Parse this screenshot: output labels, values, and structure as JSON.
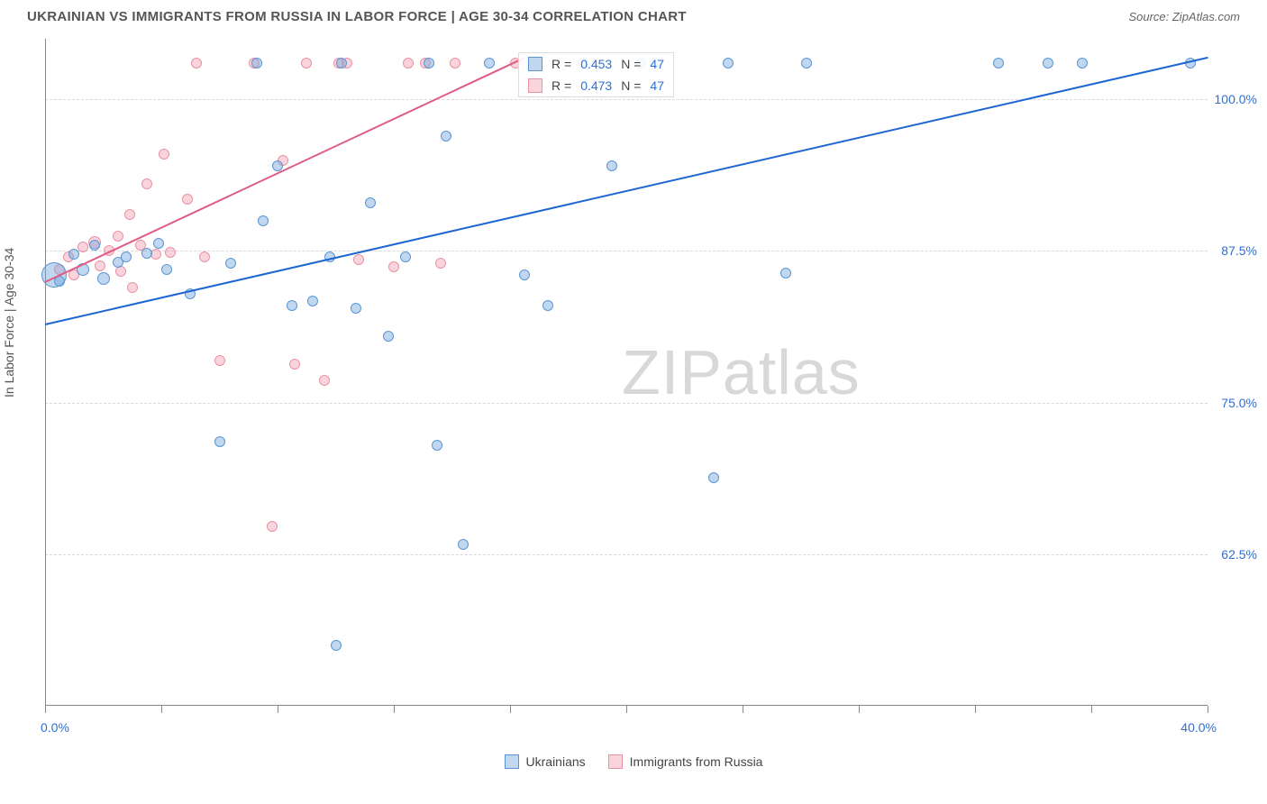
{
  "title": "UKRAINIAN VS IMMIGRANTS FROM RUSSIA IN LABOR FORCE | AGE 30-34 CORRELATION CHART",
  "source_label": "Source: ZipAtlas.com",
  "ylabel": "In Labor Force | Age 30-34",
  "chart": {
    "type": "scatter",
    "background_color": "#ffffff",
    "grid_color": "#d8d8d8",
    "axis_color": "#888888",
    "label_color": "#2f6fd0",
    "xlim": [
      0,
      40
    ],
    "ylim": [
      50,
      105
    ],
    "xtick_positions": [
      0,
      4,
      8,
      12,
      16,
      20,
      24,
      28,
      32,
      36,
      40
    ],
    "x_min_label": "0.0%",
    "x_max_label": "40.0%",
    "ytick_positions": [
      62.5,
      75.0,
      87.5,
      100.0
    ],
    "ytick_labels": [
      "62.5%",
      "75.0%",
      "87.5%",
      "100.0%"
    ],
    "ytick_fontsize": 14,
    "watermark_text_a": "ZIP",
    "watermark_text_b": "atlas",
    "watermark_color": "#d8d8d8",
    "series": {
      "blue": {
        "name": "Ukrainians",
        "fill": "rgba(116,166,220,0.45)",
        "stroke": "#5b96d4",
        "trend_color": "#1e66d0",
        "R": "0.453",
        "N": "47",
        "trend": {
          "x1": 0,
          "y1": 81.5,
          "x2": 40,
          "y2": 103.5
        },
        "points": [
          {
            "x": 0.3,
            "y": 85.5,
            "r": 14
          },
          {
            "x": 0.5,
            "y": 85.0,
            "r": 6
          },
          {
            "x": 1.0,
            "y": 87.2,
            "r": 6
          },
          {
            "x": 1.3,
            "y": 86.0,
            "r": 7
          },
          {
            "x": 1.7,
            "y": 88.0,
            "r": 6
          },
          {
            "x": 2.0,
            "y": 85.2,
            "r": 7
          },
          {
            "x": 2.8,
            "y": 87.0,
            "r": 6
          },
          {
            "x": 2.5,
            "y": 86.6,
            "r": 6
          },
          {
            "x": 3.5,
            "y": 87.3,
            "r": 6
          },
          {
            "x": 3.9,
            "y": 88.1,
            "r": 6
          },
          {
            "x": 4.2,
            "y": 86.0,
            "r": 6
          },
          {
            "x": 5.0,
            "y": 84.0,
            "r": 6
          },
          {
            "x": 6.0,
            "y": 71.8,
            "r": 6
          },
          {
            "x": 6.4,
            "y": 86.5,
            "r": 6
          },
          {
            "x": 7.3,
            "y": 103.0,
            "r": 6
          },
          {
            "x": 7.5,
            "y": 90.0,
            "r": 6
          },
          {
            "x": 8.0,
            "y": 94.5,
            "r": 6
          },
          {
            "x": 8.5,
            "y": 83.0,
            "r": 6
          },
          {
            "x": 9.2,
            "y": 83.4,
            "r": 6
          },
          {
            "x": 9.8,
            "y": 87.0,
            "r": 6
          },
          {
            "x": 10.0,
            "y": 55.0,
            "r": 6
          },
          {
            "x": 10.7,
            "y": 82.8,
            "r": 6
          },
          {
            "x": 10.2,
            "y": 103.0,
            "r": 6
          },
          {
            "x": 11.2,
            "y": 91.5,
            "r": 6
          },
          {
            "x": 11.8,
            "y": 80.5,
            "r": 6
          },
          {
            "x": 12.4,
            "y": 87.0,
            "r": 6
          },
          {
            "x": 13.2,
            "y": 103.0,
            "r": 6
          },
          {
            "x": 13.5,
            "y": 71.5,
            "r": 6
          },
          {
            "x": 13.8,
            "y": 97.0,
            "r": 6
          },
          {
            "x": 14.4,
            "y": 63.3,
            "r": 6
          },
          {
            "x": 15.3,
            "y": 103.0,
            "r": 6
          },
          {
            "x": 16.5,
            "y": 85.5,
            "r": 6
          },
          {
            "x": 17.3,
            "y": 83.0,
            "r": 6
          },
          {
            "x": 18.5,
            "y": 103.0,
            "r": 6
          },
          {
            "x": 19.5,
            "y": 94.5,
            "r": 6
          },
          {
            "x": 20.5,
            "y": 103.0,
            "r": 6
          },
          {
            "x": 21.0,
            "y": 103.0,
            "r": 6
          },
          {
            "x": 23.0,
            "y": 68.8,
            "r": 6
          },
          {
            "x": 23.5,
            "y": 103.0,
            "r": 6
          },
          {
            "x": 25.5,
            "y": 85.7,
            "r": 6
          },
          {
            "x": 26.2,
            "y": 103.0,
            "r": 6
          },
          {
            "x": 32.8,
            "y": 103.0,
            "r": 6
          },
          {
            "x": 34.5,
            "y": 103.0,
            "r": 6
          },
          {
            "x": 35.7,
            "y": 103.0,
            "r": 6
          },
          {
            "x": 39.4,
            "y": 103.0,
            "r": 6
          }
        ]
      },
      "pink": {
        "name": "Immigants from Russia",
        "name_display": "Immigrants from Russia",
        "fill": "rgba(243,160,178,0.45)",
        "stroke": "#e892a4",
        "trend_color": "#e05b85",
        "R": "0.473",
        "N": "47",
        "trend": {
          "x1": 0,
          "y1": 85.0,
          "x2": 16.5,
          "y2": 103.5
        },
        "points": [
          {
            "x": 0.5,
            "y": 86.0,
            "r": 6
          },
          {
            "x": 0.8,
            "y": 87.0,
            "r": 6
          },
          {
            "x": 1.0,
            "y": 85.5,
            "r": 6
          },
          {
            "x": 1.3,
            "y": 87.8,
            "r": 6
          },
          {
            "x": 1.7,
            "y": 88.2,
            "r": 7
          },
          {
            "x": 1.9,
            "y": 86.3,
            "r": 6
          },
          {
            "x": 2.2,
            "y": 87.5,
            "r": 6
          },
          {
            "x": 2.5,
            "y": 88.7,
            "r": 6
          },
          {
            "x": 2.6,
            "y": 85.8,
            "r": 6
          },
          {
            "x": 2.9,
            "y": 90.5,
            "r": 6
          },
          {
            "x": 3.0,
            "y": 84.5,
            "r": 6
          },
          {
            "x": 3.3,
            "y": 88.0,
            "r": 6
          },
          {
            "x": 3.5,
            "y": 93.0,
            "r": 6
          },
          {
            "x": 3.8,
            "y": 87.2,
            "r": 6
          },
          {
            "x": 4.1,
            "y": 95.5,
            "r": 6
          },
          {
            "x": 4.3,
            "y": 87.4,
            "r": 6
          },
          {
            "x": 4.9,
            "y": 91.8,
            "r": 6
          },
          {
            "x": 5.2,
            "y": 103.0,
            "r": 6
          },
          {
            "x": 5.5,
            "y": 87.0,
            "r": 6
          },
          {
            "x": 6.0,
            "y": 78.5,
            "r": 6
          },
          {
            "x": 7.2,
            "y": 103.0,
            "r": 6
          },
          {
            "x": 7.8,
            "y": 64.8,
            "r": 6
          },
          {
            "x": 8.2,
            "y": 95.0,
            "r": 6
          },
          {
            "x": 8.6,
            "y": 78.2,
            "r": 6
          },
          {
            "x": 9.0,
            "y": 103.0,
            "r": 6
          },
          {
            "x": 9.6,
            "y": 76.8,
            "r": 6
          },
          {
            "x": 10.1,
            "y": 103.0,
            "r": 6
          },
          {
            "x": 10.4,
            "y": 103.0,
            "r": 6
          },
          {
            "x": 10.8,
            "y": 86.8,
            "r": 6
          },
          {
            "x": 12.0,
            "y": 86.2,
            "r": 6
          },
          {
            "x": 12.5,
            "y": 103.0,
            "r": 6
          },
          {
            "x": 13.1,
            "y": 103.0,
            "r": 6
          },
          {
            "x": 13.6,
            "y": 86.5,
            "r": 6
          },
          {
            "x": 14.1,
            "y": 103.0,
            "r": 6
          },
          {
            "x": 16.2,
            "y": 103.0,
            "r": 6
          }
        ]
      }
    }
  },
  "legend": {
    "series1": "Ukrainians",
    "series2": "Immigrants from Russia"
  },
  "stats_box": {
    "row1": {
      "R_label": "R =",
      "R_val": "0.453",
      "N_label": "N =",
      "N_val": "47"
    },
    "row2": {
      "R_label": "R =",
      "R_val": "0.473",
      "N_label": "N =",
      "N_val": "47"
    }
  }
}
